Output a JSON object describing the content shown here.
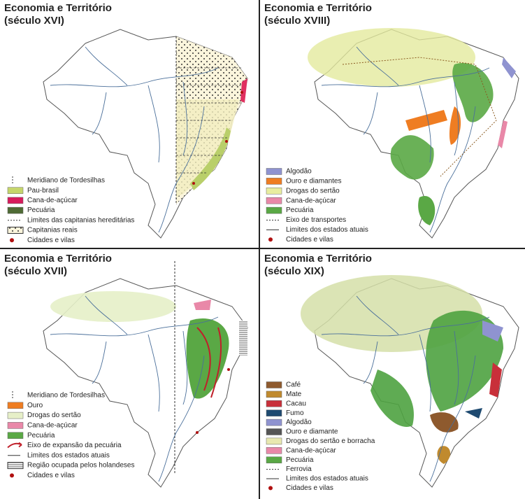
{
  "panels": [
    {
      "title": "Economia e Território",
      "subtitle": "(século XVI)",
      "legend": [
        "Meridiano de Tordesilhas",
        "Pau-brasil",
        "Cana-de-açúcar",
        "Pecuária",
        "Limites das capitanias hereditárias",
        "Capitanias reais",
        "Cidades e vilas"
      ]
    },
    {
      "title": "Economia e Território",
      "subtitle": "(século XVIII)",
      "legend": [
        "Algodão",
        "Ouro e diamantes",
        "Drogas do sertão",
        "Cana-de-açúcar",
        "Pecuária",
        "Eixo de transportes",
        "Limites dos estados atuais",
        "Cidades e vilas"
      ]
    },
    {
      "title": "Economia e Território",
      "subtitle": "(século XVII)",
      "legend": [
        "Meridiano de Tordesilhas",
        "Ouro",
        "Drogas do sertão",
        "Cana-de-açúcar",
        "Pecuária",
        "Eixo de expansão da pecuária",
        "Limites dos estados atuais",
        "Região ocupada pelos holandeses",
        "Cidades e vilas"
      ]
    },
    {
      "title": "Economia e Território",
      "subtitle": "(século XIX)",
      "legend": [
        "Café",
        "Mate",
        "Cacau",
        "Fumo",
        "Algodão",
        "Ouro e diamante",
        "Drogas do sertão e borracha",
        "Cana-de-açúcar",
        "Pecuária",
        "Ferrovia",
        "Limites dos estados atuais",
        "Cidades e vilas"
      ]
    }
  ]
}
